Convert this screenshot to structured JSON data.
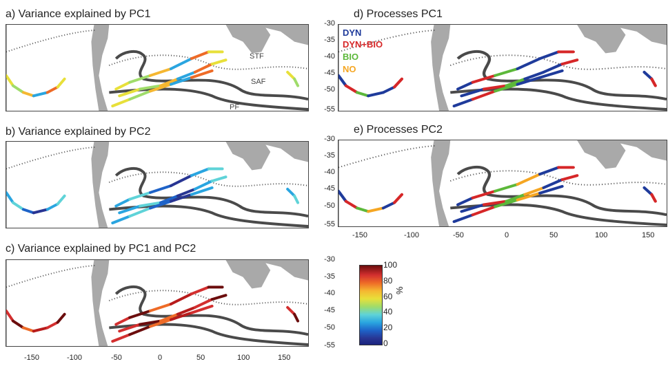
{
  "panels": {
    "a": {
      "title": "a) Variance explained by PC1"
    },
    "b": {
      "title": "b) Variance explained by PC2"
    },
    "c": {
      "title": "c) Variance explained by PC1 and PC2"
    },
    "d": {
      "title": "d) Processes PC1"
    },
    "e": {
      "title": "e) Processes PC2"
    }
  },
  "fronts": {
    "stf": "STF",
    "saf": "SAF",
    "pf": "PF"
  },
  "legend": [
    {
      "label": "DYN",
      "color": "#1f3b9b"
    },
    {
      "label": "DYN+BIO",
      "color": "#d62728"
    },
    {
      "label": "BIO",
      "color": "#5cb83a"
    },
    {
      "label": "NO",
      "color": "#f5a623"
    }
  ],
  "colorbar": {
    "ticks": [
      "100",
      "80",
      "60",
      "40",
      "20",
      "0"
    ],
    "unit": "%",
    "colors": [
      "#1a237e",
      "#1e63c8",
      "#2aa5e0",
      "#9fdc6a",
      "#e8e03a",
      "#ee6b27",
      "#d32f2f",
      "#6b0d0d"
    ]
  },
  "axes": {
    "lon_ticks": [
      "-150",
      "-100",
      "-50",
      "0",
      "50",
      "100",
      "150"
    ],
    "lat_ticks": [
      "-30",
      "-35",
      "-40",
      "-45",
      "-50",
      "-55"
    ]
  },
  "map_colors": {
    "land": "#a9a9a9",
    "front": "#4a4a4a"
  }
}
